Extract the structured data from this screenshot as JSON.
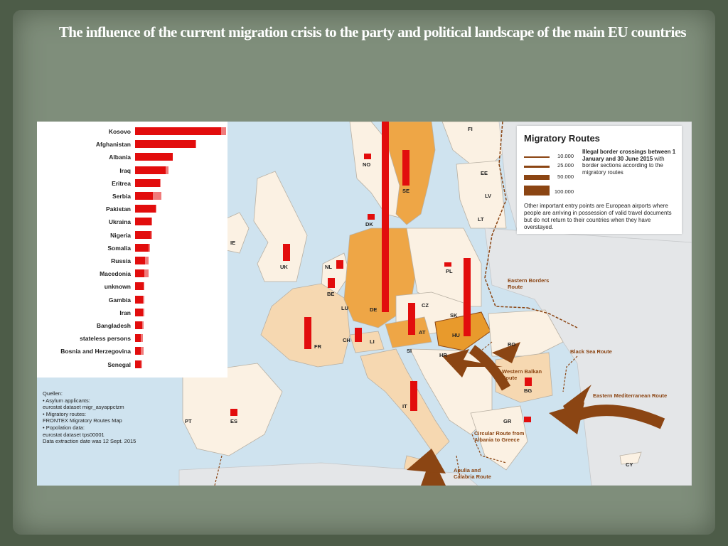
{
  "title": "The influence of the current migration crisis to the party and political landscape of the main EU countries",
  "chart_data": {
    "type": "bar",
    "categories": [
      "Kosovo",
      "Afghanistan",
      "Albania",
      "Iraq",
      "Eritrea",
      "Serbia",
      "Pakistan",
      "Ukraina",
      "Nigeria",
      "Somalia",
      "Russia",
      "Macedonia",
      "unknown",
      "Gambia",
      "Iran",
      "Bangladesh",
      "stateless persons",
      "Bosnia and Herzegovina",
      "Senegal"
    ],
    "series": [
      {
        "values": [
          100,
          70,
          44,
          36,
          29,
          21,
          24,
          19,
          18,
          16,
          12,
          11,
          10,
          9,
          9,
          8,
          7,
          7,
          7
        ]
      },
      {
        "values": [
          6,
          1,
          0,
          3,
          1,
          10,
          1,
          1,
          2,
          1,
          4,
          5,
          1,
          2,
          2,
          2,
          2,
          3,
          1
        ]
      }
    ]
  },
  "sources": [
    "Quellen:",
    "• Asylum applicants:",
    "   eurostat dataset migr_asyappctzm",
    "• Migratory routes:",
    "   FRONTEX Migratory Routes Map",
    "• Popolation data:",
    "   eurostat dataset tps00001",
    "Data extraction date was 12 Sept. 2015"
  ],
  "legend": {
    "title": "Migratory Routes",
    "rows": [
      "10.000",
      "25.000",
      "50.000",
      "100.000"
    ],
    "description_bold": "Illegal border crossings between 1 January and 30 June 2015",
    "description": "with border sections according to the migratory routes",
    "note": "Other important entry points are European airports where people are arriving in possession of valid travel documents but do not return to their countries when they have overstayed."
  },
  "countries": [
    "FI",
    "NO",
    "SE",
    "EE",
    "LV",
    "LT",
    "DK",
    "IE",
    "UK",
    "NL",
    "BE",
    "LU",
    "DE",
    "PL",
    "CZ",
    "SK",
    "FR",
    "CH",
    "LI",
    "AT",
    "HU",
    "SI",
    "HR",
    "RO",
    "BG",
    "IT",
    "PT",
    "ES",
    "GR",
    "CY"
  ],
  "routes": [
    "Eastern Borders Route",
    "Black Sea Route",
    "Western Balkan Route",
    "Eastern Mediterranean Route",
    "Circular Route from Albania to Greece",
    "Apulia and Calabria Route"
  ],
  "colors": {
    "bar": "#e20d0d",
    "bar_light": "#f07b7b",
    "route": "#8b4513",
    "highlight": "#e89a2c"
  }
}
